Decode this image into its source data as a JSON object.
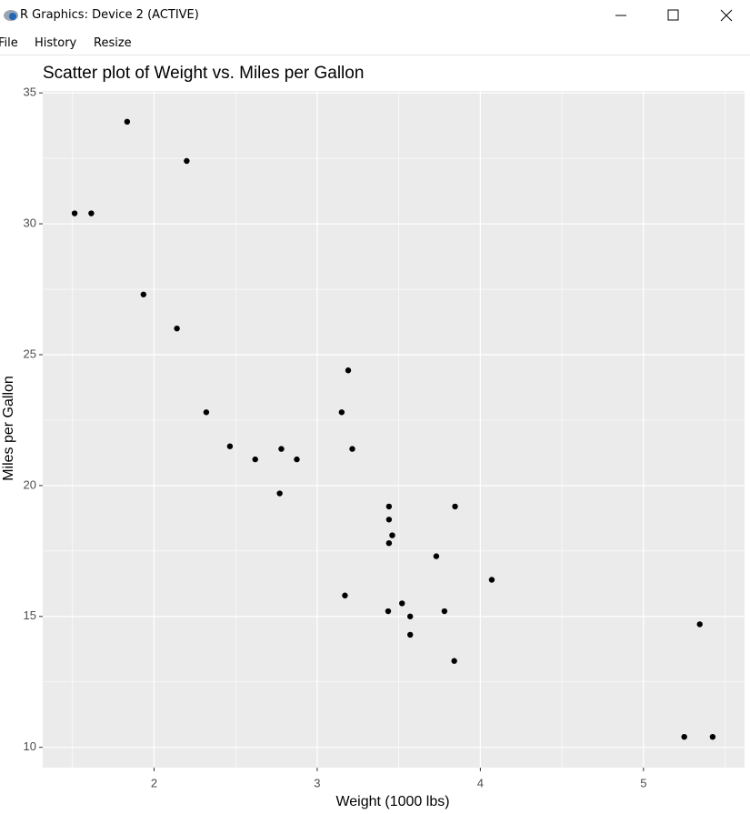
{
  "window": {
    "title": "R Graphics: Device 2 (ACTIVE)",
    "menu": [
      "File",
      "History",
      "Resize"
    ]
  },
  "chart_data": {
    "type": "scatter",
    "title": "Scatter plot of Weight vs. Miles per Gallon",
    "x_label": "Weight (1000 lbs)",
    "y_label": "Miles per Gallon",
    "x": [
      2.62,
      2.875,
      2.32,
      3.215,
      3.44,
      3.46,
      3.57,
      3.19,
      3.15,
      3.44,
      3.44,
      4.07,
      3.73,
      3.78,
      5.25,
      5.424,
      5.345,
      2.2,
      1.615,
      1.835,
      2.465,
      3.52,
      3.435,
      3.84,
      3.845,
      1.935,
      2.14,
      1.513,
      3.17,
      2.77,
      3.57,
      2.78
    ],
    "values": [
      21.0,
      21.0,
      22.8,
      21.4,
      18.7,
      18.1,
      14.3,
      24.4,
      22.8,
      19.2,
      17.8,
      16.4,
      17.3,
      15.2,
      10.4,
      10.4,
      14.7,
      32.4,
      30.4,
      33.9,
      21.5,
      15.5,
      15.2,
      13.3,
      19.2,
      27.3,
      26.0,
      30.4,
      15.8,
      19.7,
      15.0,
      21.4
    ],
    "color": "#000000",
    "xlim": [
      1.31745,
      5.61955
    ],
    "ylim": [
      9.225,
      35.075
    ],
    "xticks": [
      2,
      3,
      4,
      5
    ],
    "yticks": [
      10,
      15,
      20,
      25,
      30,
      35
    ],
    "grid": true,
    "panel_color": "#ebebeb"
  }
}
